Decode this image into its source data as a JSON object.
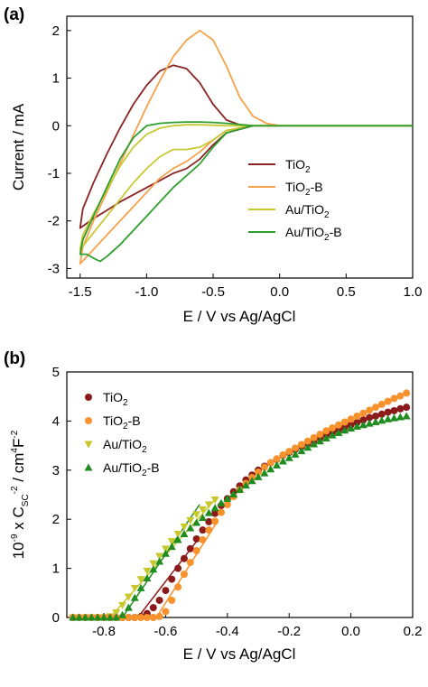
{
  "chart_data": [
    {
      "panel": "(a)",
      "type": "line",
      "xlabel": "E / V vs Ag/AgCl",
      "ylabel": "Current / mA",
      "xlim": [
        -1.6,
        1.0
      ],
      "ylim": [
        -3.2,
        2.3
      ],
      "xticks": [
        -1.5,
        -1.0,
        -0.5,
        0.0,
        0.5,
        1.0
      ],
      "xtick_labels": [
        "-1.5",
        "-1.0",
        "-0.5",
        "0.0",
        "0.5",
        "1.0"
      ],
      "yticks": [
        -3,
        -2,
        -1,
        0,
        1,
        2
      ],
      "ytick_labels": [
        "-3",
        "-2",
        "-1",
        "0",
        "1",
        "2"
      ],
      "legend_position": "lower-right",
      "series": [
        {
          "name": [
            "TiO",
            "2",
            ""
          ],
          "color": "#8b2323",
          "x": [
            1.0,
            0.5,
            0.2,
            0.0,
            -0.2,
            -0.4,
            -0.5,
            -0.6,
            -0.7,
            -0.8,
            -0.9,
            -1.0,
            -1.1,
            -1.2,
            -1.3,
            -1.4,
            -1.5,
            -1.48,
            -1.4,
            -1.3,
            -1.2,
            -1.1,
            -1.0,
            -0.9,
            -0.8,
            -0.7,
            -0.6,
            -0.5,
            -0.4,
            -0.3,
            -0.2,
            0.0,
            0.5,
            1.0
          ],
          "y": [
            0.0,
            0.0,
            0.0,
            0.0,
            0.0,
            -0.15,
            -0.4,
            -0.7,
            -0.9,
            -1.0,
            -1.15,
            -1.3,
            -1.45,
            -1.6,
            -1.78,
            -1.95,
            -2.15,
            -1.75,
            -1.2,
            -0.6,
            -0.05,
            0.45,
            0.85,
            1.15,
            1.27,
            1.2,
            0.9,
            0.45,
            0.12,
            0.02,
            0.0,
            0.0,
            0.0,
            0.0
          ]
        },
        {
          "name": [
            "TiO",
            "2",
            "-B"
          ],
          "color": "#f5a24a",
          "x": [
            1.0,
            0.5,
            0.2,
            0.0,
            -0.2,
            -0.4,
            -0.5,
            -0.6,
            -0.7,
            -0.8,
            -0.9,
            -1.0,
            -1.1,
            -1.2,
            -1.3,
            -1.4,
            -1.5,
            -1.48,
            -1.4,
            -1.3,
            -1.2,
            -1.1,
            -1.0,
            -0.9,
            -0.8,
            -0.7,
            -0.6,
            -0.5,
            -0.4,
            -0.3,
            -0.2,
            -0.1,
            0.0,
            0.2,
            0.5,
            1.0
          ],
          "y": [
            0.0,
            0.0,
            0.0,
            0.0,
            0.0,
            -0.1,
            -0.3,
            -0.55,
            -0.75,
            -0.9,
            -1.1,
            -1.4,
            -1.7,
            -2.0,
            -2.3,
            -2.6,
            -2.9,
            -2.55,
            -2.0,
            -1.4,
            -0.8,
            -0.2,
            0.4,
            0.95,
            1.45,
            1.8,
            2.0,
            1.8,
            1.25,
            0.6,
            0.2,
            0.05,
            0.0,
            0.0,
            0.0,
            0.0
          ]
        },
        {
          "name": [
            "Au/TiO",
            "2",
            ""
          ],
          "color": "#c8c832",
          "x": [
            1.0,
            0.5,
            0.2,
            0.0,
            -0.2,
            -0.4,
            -0.5,
            -0.6,
            -0.7,
            -0.8,
            -0.9,
            -1.0,
            -1.1,
            -1.2,
            -1.3,
            -1.4,
            -1.5,
            -1.48,
            -1.4,
            -1.3,
            -1.2,
            -1.1,
            -1.0,
            -0.9,
            -0.8,
            -0.7,
            -0.6,
            -0.5,
            -0.4,
            -0.2,
            0.0,
            0.5,
            1.0
          ],
          "y": [
            0.0,
            0.0,
            0.0,
            0.0,
            0.0,
            -0.1,
            -0.3,
            -0.45,
            -0.5,
            -0.5,
            -0.65,
            -0.9,
            -1.2,
            -1.55,
            -1.9,
            -2.25,
            -2.6,
            -2.3,
            -1.85,
            -1.35,
            -0.85,
            -0.45,
            -0.18,
            -0.05,
            0.0,
            0.02,
            0.02,
            0.01,
            0.0,
            0.0,
            0.0,
            0.0,
            0.0
          ]
        },
        {
          "name": [
            "Au/TiO",
            "2",
            "-B"
          ],
          "color": "#2e9e2e",
          "x": [
            1.0,
            0.5,
            0.2,
            0.0,
            -0.2,
            -0.4,
            -0.5,
            -0.6,
            -0.7,
            -0.8,
            -0.9,
            -1.0,
            -1.1,
            -1.2,
            -1.3,
            -1.35,
            -1.4,
            -1.45,
            -1.5,
            -1.48,
            -1.4,
            -1.3,
            -1.2,
            -1.1,
            -1.0,
            -0.9,
            -0.8,
            -0.7,
            -0.6,
            -0.5,
            -0.4,
            -0.2,
            0.0,
            0.5,
            1.0
          ],
          "y": [
            0.0,
            0.0,
            0.0,
            0.0,
            0.0,
            -0.15,
            -0.45,
            -0.8,
            -1.05,
            -1.3,
            -1.6,
            -1.9,
            -2.2,
            -2.5,
            -2.75,
            -2.85,
            -2.78,
            -2.7,
            -2.7,
            -2.4,
            -1.9,
            -1.3,
            -0.7,
            -0.25,
            0.0,
            0.05,
            0.07,
            0.08,
            0.08,
            0.07,
            0.05,
            0.0,
            0.0,
            0.0,
            0.0
          ]
        }
      ]
    },
    {
      "panel": "(b)",
      "type": "scatter",
      "xlabel": "E / V vs Ag/AgCl",
      "ylabel": [
        "10",
        "-9",
        " x C",
        "SC",
        "-2",
        " / cm",
        "4",
        "F",
        "-2"
      ],
      "xlim": [
        -0.92,
        0.2
      ],
      "ylim": [
        0,
        5
      ],
      "xticks": [
        -0.8,
        -0.6,
        -0.4,
        -0.2,
        0.0,
        0.2
      ],
      "xtick_labels": [
        "-0.8",
        "-0.6",
        "-0.4",
        "-0.2",
        "0.0",
        "0.2"
      ],
      "yticks": [
        0,
        1,
        2,
        3,
        4,
        5
      ],
      "ytick_labels": [
        "0",
        "1",
        "2",
        "3",
        "4",
        "5"
      ],
      "legend_position": "upper-left",
      "series": [
        {
          "name": [
            "TiO",
            "2",
            ""
          ],
          "marker": "circle",
          "color": "#8b1a1a",
          "x": [
            -0.9,
            -0.88,
            -0.86,
            -0.84,
            -0.82,
            -0.8,
            -0.78,
            -0.76,
            -0.74,
            -0.72,
            -0.7,
            -0.68,
            -0.66,
            -0.64,
            -0.62,
            -0.6,
            -0.58,
            -0.56,
            -0.54,
            -0.52,
            -0.5,
            -0.48,
            -0.46,
            -0.44,
            -0.42,
            -0.4,
            -0.38,
            -0.36,
            -0.34,
            -0.32,
            -0.3,
            -0.28,
            -0.26,
            -0.24,
            -0.22,
            -0.2,
            -0.18,
            -0.16,
            -0.14,
            -0.12,
            -0.1,
            -0.08,
            -0.06,
            -0.04,
            -0.02,
            0.0,
            0.02,
            0.04,
            0.06,
            0.08,
            0.1,
            0.12,
            0.14,
            0.16,
            0.18
          ],
          "y": [
            0.0,
            0.0,
            0.0,
            0.0,
            0.0,
            0.0,
            0.0,
            0.0,
            0.0,
            0.0,
            0.0,
            0.02,
            0.08,
            0.2,
            0.35,
            0.55,
            0.78,
            1.0,
            1.2,
            1.4,
            1.6,
            1.78,
            1.95,
            2.12,
            2.28,
            2.42,
            2.56,
            2.68,
            2.8,
            2.9,
            3.0,
            3.08,
            3.15,
            3.22,
            3.3,
            3.36,
            3.42,
            3.48,
            3.54,
            3.6,
            3.66,
            3.72,
            3.77,
            3.82,
            3.87,
            3.92,
            3.97,
            4.02,
            4.07,
            4.1,
            4.14,
            4.18,
            4.21,
            4.25,
            4.28
          ]
        },
        {
          "name": [
            "TiO",
            "2",
            "-B"
          ],
          "marker": "circle",
          "color": "#f7922d",
          "x": [
            -0.9,
            -0.88,
            -0.86,
            -0.84,
            -0.82,
            -0.8,
            -0.78,
            -0.76,
            -0.74,
            -0.72,
            -0.7,
            -0.68,
            -0.66,
            -0.64,
            -0.62,
            -0.6,
            -0.58,
            -0.56,
            -0.54,
            -0.52,
            -0.5,
            -0.48,
            -0.46,
            -0.44,
            -0.42,
            -0.4,
            -0.38,
            -0.36,
            -0.34,
            -0.32,
            -0.3,
            -0.28,
            -0.26,
            -0.24,
            -0.22,
            -0.2,
            -0.18,
            -0.16,
            -0.14,
            -0.12,
            -0.1,
            -0.08,
            -0.06,
            -0.04,
            -0.02,
            0.0,
            0.02,
            0.04,
            0.06,
            0.08,
            0.1,
            0.12,
            0.14,
            0.16,
            0.18
          ],
          "y": [
            0.0,
            0.0,
            0.0,
            0.0,
            0.0,
            0.0,
            0.0,
            0.0,
            0.0,
            0.0,
            0.0,
            0.0,
            0.0,
            0.0,
            0.02,
            0.12,
            0.35,
            0.62,
            0.88,
            1.12,
            1.36,
            1.58,
            1.78,
            1.96,
            2.14,
            2.3,
            2.46,
            2.6,
            2.73,
            2.85,
            2.96,
            3.06,
            3.15,
            3.23,
            3.31,
            3.38,
            3.45,
            3.52,
            3.59,
            3.66,
            3.73,
            3.8,
            3.86,
            3.92,
            3.98,
            4.04,
            4.1,
            4.16,
            4.22,
            4.28,
            4.34,
            4.4,
            4.46,
            4.51,
            4.57
          ]
        },
        {
          "name": [
            "Au/TiO",
            "2",
            ""
          ],
          "marker": "triangle-down",
          "color": "#c8c82d",
          "x": [
            -0.9,
            -0.88,
            -0.86,
            -0.84,
            -0.82,
            -0.8,
            -0.78,
            -0.76,
            -0.74,
            -0.72,
            -0.7,
            -0.68,
            -0.66,
            -0.64,
            -0.62,
            -0.6,
            -0.58,
            -0.56,
            -0.54,
            -0.52,
            -0.5,
            -0.48,
            -0.46,
            -0.44
          ],
          "y": [
            0.0,
            0.0,
            0.0,
            0.0,
            0.0,
            0.0,
            0.02,
            0.1,
            0.25,
            0.42,
            0.6,
            0.78,
            0.95,
            1.1,
            1.25,
            1.4,
            1.55,
            1.7,
            1.85,
            1.98,
            2.1,
            2.2,
            2.3,
            2.4
          ]
        },
        {
          "name": [
            "Au/TiO",
            "2",
            "-B"
          ],
          "marker": "triangle-up",
          "color": "#1e8c1e",
          "x": [
            -0.9,
            -0.88,
            -0.86,
            -0.84,
            -0.82,
            -0.8,
            -0.78,
            -0.76,
            -0.74,
            -0.72,
            -0.7,
            -0.68,
            -0.66,
            -0.64,
            -0.62,
            -0.6,
            -0.58,
            -0.56,
            -0.54,
            -0.52,
            -0.5,
            -0.48,
            -0.46,
            -0.44,
            -0.42,
            -0.4,
            -0.38,
            -0.36,
            -0.34,
            -0.32,
            -0.3,
            -0.28,
            -0.26,
            -0.24,
            -0.22,
            -0.2,
            -0.18,
            -0.16,
            -0.14,
            -0.12,
            -0.1,
            -0.08,
            -0.06,
            -0.04,
            -0.02,
            0.0,
            0.02,
            0.04,
            0.06,
            0.08,
            0.1,
            0.12,
            0.14,
            0.16,
            0.18
          ],
          "y": [
            0.0,
            0.0,
            0.0,
            0.0,
            0.0,
            0.0,
            0.0,
            0.0,
            0.05,
            0.2,
            0.4,
            0.6,
            0.8,
            0.98,
            1.14,
            1.3,
            1.44,
            1.58,
            1.7,
            1.82,
            1.93,
            2.03,
            2.13,
            2.23,
            2.33,
            2.42,
            2.51,
            2.6,
            2.69,
            2.78,
            2.86,
            2.94,
            3.02,
            3.1,
            3.18,
            3.25,
            3.32,
            3.39,
            3.46,
            3.53,
            3.59,
            3.65,
            3.71,
            3.76,
            3.81,
            3.85,
            3.89,
            3.92,
            3.95,
            3.98,
            4.01,
            4.04,
            4.06,
            4.08,
            4.1
          ]
        }
      ],
      "fit_lines": [
        {
          "color": "#8b1a1a",
          "x": [
            -0.69,
            -0.5
          ],
          "y": [
            0.0,
            1.55
          ]
        },
        {
          "color": "#f7922d",
          "x": [
            -0.63,
            -0.43
          ],
          "y": [
            0.0,
            1.98
          ]
        },
        {
          "color": "#c8c82d",
          "x": [
            -0.78,
            -0.44
          ],
          "y": [
            0.0,
            2.4
          ]
        },
        {
          "color": "#1e8c1e",
          "x": [
            -0.74,
            -0.49
          ],
          "y": [
            0.0,
            2.3
          ]
        }
      ]
    }
  ]
}
